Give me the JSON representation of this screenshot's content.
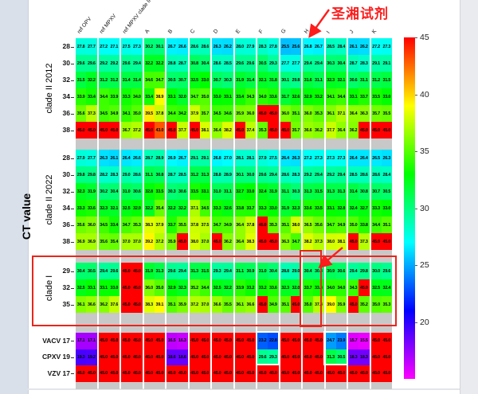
{
  "annotation": {
    "text": "圣湘试剂",
    "color": "#fe1c1c",
    "points_to_column": "H"
  },
  "highlights": {
    "red_box_section": "clade I",
    "red_box_column": "H",
    "white_box_columns": [
      "F",
      "I"
    ],
    "white_box_rows": [
      "VACV 17",
      "CPXV 19"
    ]
  },
  "chart_data": {
    "type": "heatmap",
    "ylabel": "CT value",
    "colorbar": {
      "ticks": [
        "45",
        "40",
        "35",
        "30",
        "25",
        "20"
      ],
      "vmax": 45,
      "vmin": 15,
      "colormap": "red-yellow-green-cyan-blue-magenta"
    },
    "columns": [
      "ref OPV",
      "ref MPXV",
      "ref MPXV clade II",
      "A",
      "B",
      "C",
      "D",
      "E",
      "F",
      "G",
      "H",
      "I",
      "J",
      "K"
    ],
    "subcolumns_per_group": 2,
    "sections": [
      {
        "name": "clade II 2012",
        "row_labels": [
          "28",
          "30",
          "32",
          "34",
          "36",
          "38"
        ],
        "rows": [
          [
            27.8,
            27.7,
            27.2,
            27.1,
            27.5,
            27.3,
            30.2,
            30.1,
            26.7,
            26.6,
            28.6,
            28.6,
            26.3,
            26.2,
            28.0,
            27.9,
            28.3,
            27.8,
            25.5,
            25.6,
            26.8,
            26.7,
            28.5,
            28.4,
            26.1,
            26.2,
            27.2,
            27.3
          ],
          [
            29.6,
            29.6,
            29.2,
            29.2,
            29.6,
            29.4,
            32.2,
            32.2,
            28.8,
            28.7,
            30.8,
            30.4,
            28.6,
            28.5,
            29.6,
            29.6,
            30.5,
            29.3,
            27.7,
            27.7,
            29.4,
            29.4,
            30.3,
            30.4,
            28.7,
            28.3,
            29.1,
            29.1
          ],
          [
            31.5,
            32.2,
            31.2,
            31.2,
            31.4,
            31.4,
            34.6,
            34.7,
            30.5,
            30.7,
            32.5,
            33.0,
            30.7,
            30.3,
            31.9,
            31.4,
            32.1,
            31.8,
            30.1,
            29.8,
            31.6,
            31.1,
            32.3,
            32.1,
            30.6,
            31.1,
            31.2,
            31.5
          ],
          [
            33.9,
            33.4,
            34.4,
            33.9,
            33.3,
            34.0,
            33.4,
            38.9,
            33.1,
            32.0,
            34.7,
            35.0,
            33.0,
            33.1,
            33.4,
            34.3,
            34.0,
            33.6,
            31.7,
            32.6,
            32.9,
            33.2,
            34.1,
            34.4,
            33.1,
            33.7,
            33.5,
            33.0
          ],
          [
            35.6,
            37.3,
            34.5,
            34.9,
            34.1,
            35.0,
            39.5,
            37.8,
            34.4,
            34.2,
            37.9,
            35.7,
            34.5,
            34.6,
            35.9,
            36.0,
            45.0,
            45.0,
            36.0,
            35.1,
            36.0,
            35.3,
            36.1,
            37.1,
            36.4,
            36.3,
            35.7,
            35.5
          ],
          [
            45.0,
            45.0,
            45.0,
            45.0,
            36.7,
            37.2,
            45.0,
            43.0,
            45.0,
            37.7,
            45.0,
            38.1,
            36.4,
            38.2,
            45.0,
            37.4,
            35.3,
            45.0,
            45.0,
            35.7,
            36.6,
            36.2,
            37.7,
            36.4,
            36.2,
            45.0,
            45.0,
            45.0
          ]
        ]
      },
      {
        "name": "clade II 2022",
        "row_labels": [
          "28",
          "30",
          "32",
          "34",
          "36",
          "38"
        ],
        "rows": [
          [
            27.9,
            27.7,
            26.3,
            26.1,
            26.4,
            26.6,
            28.7,
            28.9,
            26.9,
            26.7,
            29.1,
            29.1,
            26.8,
            27.0,
            28.1,
            28.1,
            27.9,
            27.5,
            26.4,
            26.3,
            27.2,
            27.3,
            27.3,
            27.3,
            26.4,
            26.4,
            26.5,
            26.3
          ],
          [
            29.8,
            29.8,
            28.2,
            28.3,
            29.0,
            28.6,
            31.1,
            30.8,
            28.7,
            28.5,
            31.2,
            31.3,
            28.8,
            28.9,
            30.1,
            30.0,
            29.6,
            29.4,
            28.6,
            28.3,
            29.2,
            29.4,
            29.2,
            29.4,
            28.5,
            28.6,
            28.6,
            28.4
          ],
          [
            32.3,
            31.9,
            30.2,
            30.4,
            31.0,
            30.6,
            32.8,
            33.5,
            30.3,
            30.6,
            33.5,
            33.1,
            31.0,
            31.1,
            32.7,
            33.0,
            32.4,
            31.9,
            31.1,
            30.3,
            31.3,
            31.5,
            31.3,
            31.3,
            31.4,
            30.8,
            30.7,
            30.5
          ],
          [
            33.3,
            33.6,
            32.3,
            32.1,
            32.5,
            32.9,
            32.2,
            35.4,
            32.2,
            32.2,
            37.1,
            34.5,
            33.3,
            32.6,
            33.8,
            33.7,
            33.3,
            33.0,
            31.9,
            32.3,
            33.6,
            33.5,
            33.1,
            32.8,
            32.4,
            32.7,
            33.3,
            33.0
          ],
          [
            35.6,
            36.0,
            34.5,
            33.4,
            34.7,
            35.3,
            38.3,
            37.9,
            33.7,
            35.5,
            37.8,
            37.5,
            34.7,
            34.9,
            36.4,
            37.8,
            45.0,
            35.3,
            35.1,
            38.0,
            36.5,
            35.6,
            34.7,
            34.9,
            35.0,
            33.8,
            34.4,
            35.1
          ],
          [
            36.9,
            36.9,
            35.6,
            35.4,
            37.0,
            37.0,
            39.2,
            37.2,
            35.9,
            45.0,
            38.0,
            37.0,
            45.0,
            36.2,
            36.4,
            38.3,
            45.0,
            45.0,
            36.3,
            34.7,
            38.2,
            37.3,
            38.0,
            38.1,
            45.0,
            37.3,
            45.0,
            45.0
          ]
        ]
      },
      {
        "name": "clade I",
        "row_labels": [
          "29",
          "32",
          "35"
        ],
        "rows": [
          [
            30.4,
            30.5,
            29.4,
            29.6,
            45.0,
            45.0,
            31.9,
            31.3,
            29.6,
            29.4,
            31.3,
            31.5,
            29.3,
            29.4,
            31.1,
            30.9,
            31.0,
            30.4,
            28.8,
            29.0,
            30.4,
            30.3,
            30.9,
            30.6,
            29.4,
            29.8,
            30.0,
            29.6
          ],
          [
            32.5,
            33.1,
            33.1,
            33.0,
            45.0,
            45.0,
            36.0,
            35.0,
            32.9,
            32.3,
            35.2,
            34.4,
            32.5,
            32.2,
            33.9,
            33.2,
            33.2,
            33.6,
            32.3,
            32.0,
            33.7,
            33.3,
            34.0,
            34.0,
            34.3,
            45.0,
            32.5,
            32.4
          ],
          [
            36.1,
            36.6,
            36.2,
            37.6,
            45.0,
            45.0,
            38.3,
            39.1,
            35.1,
            35.9,
            37.2,
            37.0,
            36.6,
            35.5,
            36.1,
            36.6,
            45.0,
            34.9,
            35.1,
            45.0,
            35.0,
            37.3,
            39.0,
            35.9,
            45.0,
            35.2,
            35.0,
            35.3
          ]
        ]
      },
      {
        "name": "",
        "row_labels": [
          "VACV 17",
          "CPXV 19",
          "VZV 17"
        ],
        "rows": [
          [
            17.1,
            17.1,
            45.0,
            45.0,
            45.0,
            45.0,
            45.0,
            45.0,
            16.5,
            16.3,
            45.0,
            45.0,
            45.0,
            45.0,
            45.0,
            45.0,
            23.2,
            22.8,
            45.0,
            45.0,
            45.0,
            45.0,
            24.7,
            23.9,
            15.7,
            15.5,
            45.0,
            45.0
          ],
          [
            19.3,
            19.2,
            45.0,
            45.0,
            45.0,
            45.0,
            45.0,
            45.0,
            18.6,
            18.6,
            45.0,
            45.0,
            45.0,
            45.0,
            45.0,
            45.0,
            29.6,
            29.3,
            45.0,
            45.0,
            45.0,
            45.0,
            31.3,
            30.5,
            18.3,
            18.3,
            45.0,
            45.0
          ],
          [
            45.0,
            45.0,
            45.0,
            45.0,
            45.0,
            45.0,
            45.0,
            45.0,
            45.0,
            45.0,
            45.0,
            45.0,
            45.0,
            45.0,
            45.0,
            45.0,
            45.0,
            45.0,
            45.0,
            45.0,
            45.0,
            45.0,
            45.0,
            45.0,
            45.0,
            45.0,
            45.0,
            45.0
          ]
        ]
      }
    ]
  }
}
